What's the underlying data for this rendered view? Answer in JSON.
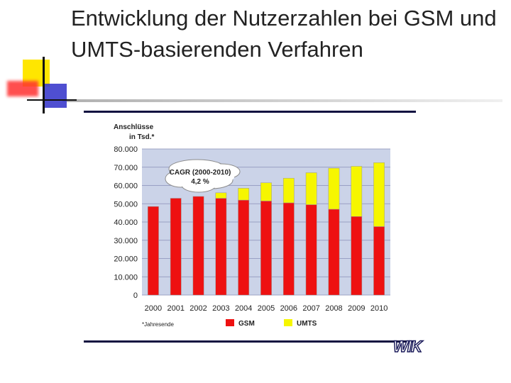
{
  "slide": {
    "title": "Entwicklung der Nutzerzahlen bei GSM und UMTS-basierenden Verfahren"
  },
  "colors": {
    "gsm": "#ee1111",
    "umts": "#f6f600",
    "plot_background": "#cbd3e8",
    "rule": "#101040"
  },
  "chart_data": {
    "type": "bar",
    "stacked": true,
    "ylabel": "Anschlüsse in Tsd.*",
    "ylabel_lines": [
      "Anschlüsse",
      "in Tsd.*"
    ],
    "footnote": "*Jahresende",
    "categories": [
      "2000",
      "2001",
      "2002",
      "2003",
      "2004",
      "2005",
      "2006",
      "2007",
      "2008",
      "2009",
      "2010"
    ],
    "series": [
      {
        "name": "GSM",
        "color": "#ee1111",
        "values": [
          48500,
          53000,
          54000,
          53000,
          52000,
          51500,
          50500,
          49500,
          47000,
          43000,
          37500
        ]
      },
      {
        "name": "UMTS",
        "color": "#f6f600",
        "values": [
          0,
          0,
          0,
          3000,
          6500,
          10000,
          13500,
          17500,
          22500,
          27500,
          35000
        ]
      }
    ],
    "ylim": [
      0,
      80000
    ],
    "yticks": [
      0,
      10000,
      20000,
      30000,
      40000,
      50000,
      60000,
      70000,
      80000
    ],
    "ytick_labels": [
      "0",
      "10.000",
      "20.000",
      "30.000",
      "40.000",
      "50.000",
      "60.000",
      "70.000",
      "80.000"
    ],
    "grid": true,
    "legend_position": "bottom",
    "annotation": {
      "line1": "CAGR (2000-2010)",
      "line2": "4,2 %"
    }
  },
  "logo": {
    "text": "WIK"
  }
}
